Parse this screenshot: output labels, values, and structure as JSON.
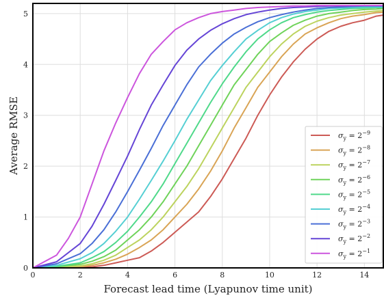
{
  "chart_data": {
    "type": "line",
    "title": "",
    "xlabel": "Forecast lead time (Lyapunov time unit)",
    "ylabel": "Average RMSE",
    "xlim": [
      0,
      14.8
    ],
    "ylim": [
      0,
      5.2
    ],
    "xticks": [
      "0",
      "2",
      "4",
      "6",
      "8",
      "10",
      "12",
      "14"
    ],
    "yticks": [
      "0",
      "1",
      "2",
      "3",
      "4",
      "5"
    ],
    "grid": true,
    "legend_position": "lower-right",
    "series": [
      {
        "name_base": "σ",
        "name_sub": "y",
        "name_eq": " = 2",
        "name_exp": "−9",
        "color": "#cc5a55",
        "x": [
          0,
          1,
          2,
          2.5,
          3,
          3.5,
          4,
          4.5,
          5,
          5.5,
          6,
          6.5,
          7,
          7.5,
          8,
          8.5,
          9,
          9.5,
          10,
          10.5,
          11,
          11.5,
          12,
          12.5,
          13,
          13.5,
          14,
          14.5,
          14.8
        ],
        "y": [
          0,
          0,
          0.01,
          0.02,
          0.05,
          0.1,
          0.15,
          0.2,
          0.33,
          0.5,
          0.7,
          0.9,
          1.1,
          1.4,
          1.75,
          2.15,
          2.55,
          3.0,
          3.4,
          3.75,
          4.05,
          4.3,
          4.5,
          4.65,
          4.75,
          4.82,
          4.87,
          4.95,
          4.97
        ]
      },
      {
        "name_base": "σ",
        "name_sub": "y",
        "name_eq": " = 2",
        "name_exp": "−8",
        "color": "#d9a455",
        "x": [
          0,
          1,
          2,
          2.5,
          3,
          3.5,
          4,
          4.5,
          5,
          5.5,
          6,
          6.5,
          7,
          7.5,
          8,
          8.5,
          9,
          9.5,
          10,
          10.5,
          11,
          11.5,
          12,
          12.5,
          13,
          13.5,
          14,
          14.5,
          14.8
        ],
        "y": [
          0,
          0.01,
          0.02,
          0.05,
          0.1,
          0.17,
          0.27,
          0.4,
          0.55,
          0.75,
          1.0,
          1.25,
          1.55,
          1.9,
          2.3,
          2.75,
          3.15,
          3.55,
          3.85,
          4.15,
          4.4,
          4.6,
          4.72,
          4.82,
          4.9,
          4.95,
          4.98,
          5.02,
          5.03
        ]
      },
      {
        "name_base": "σ",
        "name_sub": "y",
        "name_eq": " = 2",
        "name_exp": "−7",
        "color": "#bcd35e",
        "x": [
          0,
          1,
          2,
          2.5,
          3,
          3.5,
          4,
          4.5,
          5,
          5.5,
          6,
          6.5,
          7,
          7.5,
          8,
          8.5,
          9,
          9.5,
          10,
          10.5,
          11,
          11.5,
          12,
          12.5,
          13,
          13.5,
          14,
          14.5,
          14.8
        ],
        "y": [
          0,
          0.01,
          0.04,
          0.08,
          0.15,
          0.25,
          0.4,
          0.55,
          0.75,
          1.0,
          1.3,
          1.6,
          1.95,
          2.35,
          2.75,
          3.15,
          3.55,
          3.85,
          4.15,
          4.4,
          4.6,
          4.75,
          4.85,
          4.92,
          4.97,
          5.0,
          5.03,
          5.05,
          5.06
        ]
      },
      {
        "name_base": "σ",
        "name_sub": "y",
        "name_eq": " = 2",
        "name_exp": "−6",
        "color": "#6fd35a",
        "x": [
          0,
          1,
          2,
          2.5,
          3,
          3.5,
          4,
          4.5,
          5,
          5.5,
          6,
          6.5,
          7,
          7.5,
          8,
          8.5,
          9,
          9.5,
          10,
          10.5,
          11,
          11.5,
          12,
          12.5,
          13,
          13.5,
          14,
          14.5,
          14.8
        ],
        "y": [
          0,
          0.02,
          0.07,
          0.13,
          0.22,
          0.35,
          0.55,
          0.75,
          1.0,
          1.3,
          1.65,
          2.0,
          2.4,
          2.8,
          3.2,
          3.6,
          3.9,
          4.2,
          4.45,
          4.62,
          4.77,
          4.87,
          4.95,
          5.0,
          5.03,
          5.06,
          5.08,
          5.09,
          5.1
        ]
      },
      {
        "name_base": "σ",
        "name_sub": "y",
        "name_eq": " = 2",
        "name_exp": "−5",
        "color": "#4fd98a",
        "x": [
          0,
          1,
          2,
          2.5,
          3,
          3.5,
          4,
          4.5,
          5,
          5.5,
          6,
          6.5,
          7,
          7.5,
          8,
          8.5,
          9,
          9.5,
          10,
          10.5,
          11,
          11.5,
          12,
          12.5,
          13,
          13.5,
          14,
          14.5,
          14.8
        ],
        "y": [
          0,
          0.03,
          0.1,
          0.2,
          0.32,
          0.5,
          0.72,
          1.0,
          1.3,
          1.65,
          2.05,
          2.45,
          2.85,
          3.25,
          3.62,
          3.95,
          4.25,
          4.5,
          4.68,
          4.82,
          4.92,
          4.98,
          5.03,
          5.06,
          5.08,
          5.1,
          5.11,
          5.12,
          5.12
        ]
      },
      {
        "name_base": "σ",
        "name_sub": "y",
        "name_eq": " = 2",
        "name_exp": "−4",
        "color": "#55cfd3",
        "x": [
          0,
          1,
          2,
          2.5,
          3,
          3.5,
          4,
          4.5,
          5,
          5.5,
          6,
          6.5,
          7,
          7.5,
          8,
          8.5,
          9,
          9.5,
          10,
          10.5,
          11,
          11.5,
          12,
          12.5,
          13,
          13.5,
          14,
          14.5,
          14.8
        ],
        "y": [
          0,
          0.05,
          0.18,
          0.3,
          0.48,
          0.72,
          1.0,
          1.35,
          1.72,
          2.1,
          2.5,
          2.92,
          3.3,
          3.68,
          3.98,
          4.25,
          4.5,
          4.67,
          4.82,
          4.92,
          4.99,
          5.04,
          5.07,
          5.1,
          5.11,
          5.12,
          5.13,
          5.13,
          5.13
        ]
      },
      {
        "name_base": "σ",
        "name_sub": "y",
        "name_eq": " = 2",
        "name_exp": "−3",
        "color": "#4a6fd6",
        "x": [
          0,
          1,
          2,
          2.5,
          3,
          3.5,
          4,
          4.5,
          5,
          5.5,
          6,
          6.5,
          7,
          7.5,
          8,
          8.5,
          9,
          9.5,
          10,
          10.5,
          11,
          11.5,
          12,
          12.5,
          13,
          13.5,
          14,
          14.5,
          14.8
        ],
        "y": [
          0,
          0.08,
          0.28,
          0.48,
          0.75,
          1.1,
          1.5,
          1.92,
          2.35,
          2.8,
          3.2,
          3.6,
          3.95,
          4.2,
          4.42,
          4.6,
          4.73,
          4.84,
          4.92,
          4.98,
          5.03,
          5.07,
          5.1,
          5.12,
          5.13,
          5.14,
          5.15,
          5.15,
          5.15
        ]
      },
      {
        "name_base": "σ",
        "name_sub": "y",
        "name_eq": " = 2",
        "name_exp": "−2",
        "color": "#6545d6",
        "x": [
          0,
          1,
          2,
          2.5,
          3,
          3.5,
          4,
          4.5,
          5,
          5.5,
          6,
          6.5,
          7,
          7.5,
          8,
          8.5,
          9,
          9.5,
          10,
          10.5,
          11,
          11.5,
          12,
          12.5,
          13,
          13.5,
          14,
          14.5,
          14.8
        ],
        "y": [
          0,
          0.12,
          0.48,
          0.82,
          1.25,
          1.72,
          2.2,
          2.72,
          3.2,
          3.6,
          3.98,
          4.28,
          4.5,
          4.67,
          4.8,
          4.9,
          4.98,
          5.03,
          5.07,
          5.1,
          5.12,
          5.13,
          5.14,
          5.15,
          5.15,
          5.16,
          5.16,
          5.16,
          5.16
        ]
      },
      {
        "name_base": "σ",
        "name_sub": "y",
        "name_eq": " = 2",
        "name_exp": "−1",
        "color": "#cc55dd",
        "x": [
          0,
          1,
          1.5,
          2,
          2.5,
          3,
          3.5,
          4,
          4.5,
          5,
          5.5,
          6,
          6.5,
          7,
          7.5,
          8,
          8.5,
          9,
          9.5,
          10,
          10.5,
          11,
          11.5,
          12,
          12.5,
          13,
          13.5,
          14,
          14.5,
          14.8
        ],
        "y": [
          0,
          0.25,
          0.58,
          1.0,
          1.65,
          2.3,
          2.85,
          3.35,
          3.82,
          4.2,
          4.45,
          4.68,
          4.82,
          4.92,
          5.0,
          5.04,
          5.07,
          5.1,
          5.12,
          5.13,
          5.14,
          5.15,
          5.15,
          5.16,
          5.16,
          5.16,
          5.16,
          5.16,
          5.16,
          5.16
        ]
      }
    ]
  }
}
